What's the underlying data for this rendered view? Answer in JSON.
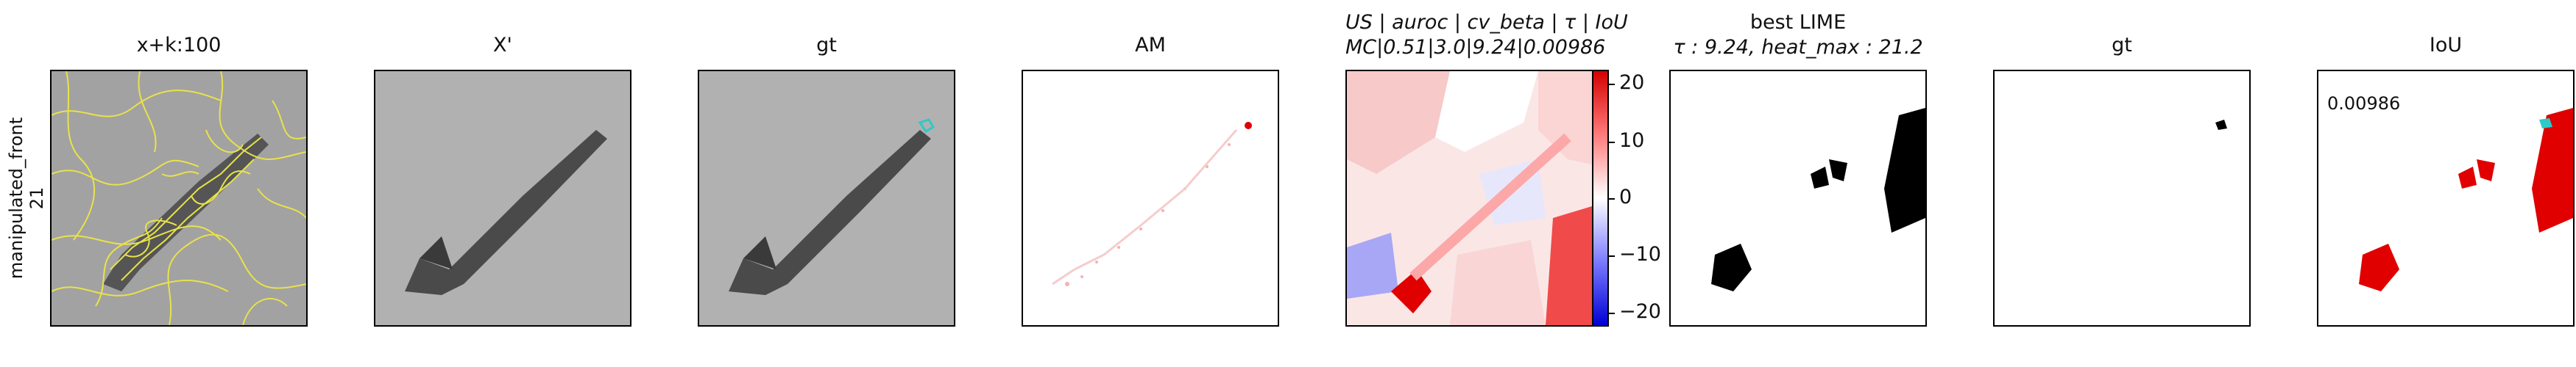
{
  "row_label": {
    "line1": "manipulated_front",
    "line2": "21"
  },
  "panels": [
    {
      "title": "x+k:100"
    },
    {
      "title": "X'"
    },
    {
      "title": "gt"
    },
    {
      "title": "AM"
    },
    {
      "title_line1": "US | auroc | cv_beta | τ | IoU",
      "title_line2": "MC|0.51|3.0|9.24|0.00986"
    },
    {
      "title_line1": "best LIME",
      "title_line2": "τ : 9.24, heat_max : 21.2"
    },
    {
      "title": "gt"
    },
    {
      "title": "IoU",
      "annotation": "0.00986"
    }
  ],
  "colorbar": {
    "ticks": [
      "20",
      "10",
      "0",
      "−10",
      "−20"
    ]
  },
  "colors": {
    "segment_lines": "#e8e24a",
    "gt_marker": "#2ec9c9",
    "heat_red": "#e00000",
    "heat_blue": "#0000e0"
  }
}
